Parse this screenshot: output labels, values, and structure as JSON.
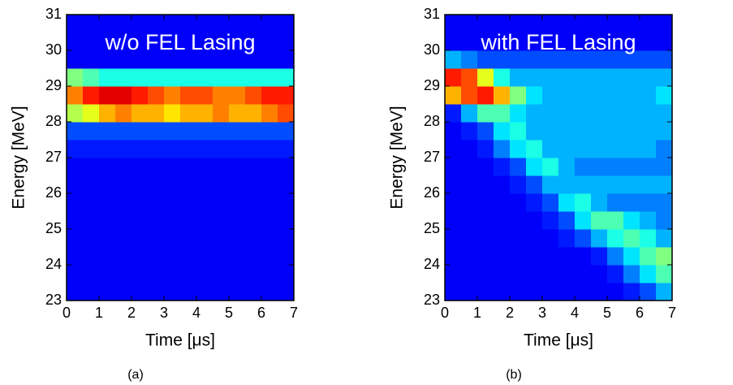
{
  "chart_data": [
    {
      "type": "heatmap",
      "title": "w/o FEL Lasing",
      "caption": "(a)",
      "x_label": "Time [μs]",
      "y_label": "Energy [MeV]",
      "colormap": "jet",
      "xlim": [
        0,
        7
      ],
      "ylim": [
        23,
        31
      ],
      "xticks": [
        0,
        1,
        2,
        3,
        4,
        5,
        6,
        7
      ],
      "yticks": [
        23,
        24,
        25,
        26,
        27,
        28,
        29,
        30,
        31
      ],
      "x_bins": [
        0,
        0.5,
        1,
        1.5,
        2,
        2.5,
        3,
        3.5,
        4,
        4.5,
        5,
        5.5,
        6,
        6.5,
        7
      ],
      "y_bins": [
        23,
        23.5,
        24,
        24.5,
        25,
        25.5,
        26,
        26.5,
        27,
        27.5,
        28,
        28.5,
        29,
        29.5,
        30,
        30.5,
        31
      ],
      "z": [
        [
          0.12,
          0.12,
          0.12,
          0.12,
          0.12,
          0.12,
          0.12,
          0.12,
          0.12,
          0.12,
          0.12,
          0.12,
          0.12,
          0.12
        ],
        [
          0.12,
          0.12,
          0.12,
          0.12,
          0.12,
          0.12,
          0.12,
          0.12,
          0.12,
          0.12,
          0.12,
          0.12,
          0.12,
          0.12
        ],
        [
          0.12,
          0.12,
          0.12,
          0.12,
          0.12,
          0.12,
          0.12,
          0.12,
          0.12,
          0.12,
          0.12,
          0.12,
          0.12,
          0.12
        ],
        [
          0.12,
          0.12,
          0.12,
          0.12,
          0.12,
          0.12,
          0.12,
          0.12,
          0.12,
          0.12,
          0.12,
          0.12,
          0.12,
          0.12
        ],
        [
          0.12,
          0.12,
          0.12,
          0.12,
          0.12,
          0.12,
          0.12,
          0.12,
          0.12,
          0.12,
          0.12,
          0.12,
          0.12,
          0.12
        ],
        [
          0.12,
          0.12,
          0.12,
          0.12,
          0.12,
          0.12,
          0.12,
          0.12,
          0.12,
          0.12,
          0.12,
          0.12,
          0.12,
          0.12
        ],
        [
          0.12,
          0.12,
          0.12,
          0.12,
          0.12,
          0.12,
          0.12,
          0.12,
          0.12,
          0.12,
          0.12,
          0.12,
          0.12,
          0.12
        ],
        [
          0.12,
          0.12,
          0.12,
          0.12,
          0.12,
          0.12,
          0.12,
          0.12,
          0.12,
          0.12,
          0.12,
          0.12,
          0.12,
          0.12
        ],
        [
          0.15,
          0.15,
          0.15,
          0.15,
          0.15,
          0.15,
          0.15,
          0.15,
          0.15,
          0.15,
          0.15,
          0.15,
          0.15,
          0.15
        ],
        [
          0.2,
          0.2,
          0.2,
          0.2,
          0.2,
          0.2,
          0.2,
          0.2,
          0.2,
          0.2,
          0.2,
          0.2,
          0.2,
          0.2
        ],
        [
          0.55,
          0.6,
          0.7,
          0.75,
          0.7,
          0.7,
          0.65,
          0.7,
          0.7,
          0.75,
          0.7,
          0.7,
          0.75,
          0.8
        ],
        [
          0.75,
          0.85,
          0.9,
          0.9,
          0.85,
          0.8,
          0.75,
          0.8,
          0.8,
          0.75,
          0.75,
          0.8,
          0.85,
          0.85
        ],
        [
          0.5,
          0.45,
          0.4,
          0.4,
          0.4,
          0.4,
          0.4,
          0.4,
          0.4,
          0.4,
          0.4,
          0.4,
          0.4,
          0.4
        ],
        [
          0.12,
          0.12,
          0.12,
          0.12,
          0.12,
          0.12,
          0.12,
          0.12,
          0.12,
          0.12,
          0.12,
          0.12,
          0.12,
          0.12
        ],
        [
          0.12,
          0.12,
          0.12,
          0.12,
          0.12,
          0.12,
          0.12,
          0.12,
          0.12,
          0.12,
          0.12,
          0.12,
          0.12,
          0.12
        ],
        [
          0.12,
          0.12,
          0.12,
          0.12,
          0.12,
          0.12,
          0.12,
          0.12,
          0.12,
          0.12,
          0.12,
          0.12,
          0.12,
          0.12
        ]
      ]
    },
    {
      "type": "heatmap",
      "title": "with FEL Lasing",
      "caption": "(b)",
      "x_label": "Time [μs]",
      "y_label": "Energy [MeV]",
      "colormap": "jet",
      "xlim": [
        0,
        7
      ],
      "ylim": [
        23,
        31
      ],
      "xticks": [
        0,
        1,
        2,
        3,
        4,
        5,
        6,
        7
      ],
      "yticks": [
        23,
        24,
        25,
        26,
        27,
        28,
        29,
        30,
        31
      ],
      "x_bins": [
        0,
        0.5,
        1,
        1.5,
        2,
        2.5,
        3,
        3.5,
        4,
        4.5,
        5,
        5.5,
        6,
        6.5,
        7
      ],
      "y_bins": [
        23,
        23.5,
        24,
        24.5,
        25,
        25.5,
        26,
        26.5,
        27,
        27.5,
        28,
        28.5,
        29,
        29.5,
        30,
        30.5,
        31
      ],
      "z": [
        [
          0.12,
          0.12,
          0.12,
          0.12,
          0.12,
          0.12,
          0.12,
          0.12,
          0.12,
          0.12,
          0.12,
          0.15,
          0.2,
          0.3
        ],
        [
          0.12,
          0.12,
          0.12,
          0.12,
          0.12,
          0.12,
          0.12,
          0.12,
          0.12,
          0.12,
          0.15,
          0.25,
          0.35,
          0.45
        ],
        [
          0.12,
          0.12,
          0.12,
          0.12,
          0.12,
          0.12,
          0.12,
          0.12,
          0.12,
          0.15,
          0.25,
          0.35,
          0.45,
          0.5
        ],
        [
          0.12,
          0.12,
          0.12,
          0.12,
          0.12,
          0.12,
          0.12,
          0.15,
          0.2,
          0.3,
          0.4,
          0.45,
          0.4,
          0.3
        ],
        [
          0.12,
          0.12,
          0.12,
          0.12,
          0.12,
          0.12,
          0.15,
          0.2,
          0.35,
          0.45,
          0.45,
          0.35,
          0.3,
          0.25
        ],
        [
          0.12,
          0.12,
          0.12,
          0.12,
          0.12,
          0.15,
          0.2,
          0.35,
          0.4,
          0.3,
          0.25,
          0.25,
          0.25,
          0.25
        ],
        [
          0.12,
          0.12,
          0.12,
          0.12,
          0.15,
          0.2,
          0.3,
          0.3,
          0.3,
          0.3,
          0.3,
          0.3,
          0.3,
          0.3
        ],
        [
          0.12,
          0.12,
          0.12,
          0.15,
          0.2,
          0.35,
          0.4,
          0.3,
          0.25,
          0.25,
          0.25,
          0.25,
          0.25,
          0.25
        ],
        [
          0.12,
          0.12,
          0.15,
          0.25,
          0.35,
          0.4,
          0.3,
          0.3,
          0.3,
          0.3,
          0.3,
          0.3,
          0.3,
          0.25
        ],
        [
          0.12,
          0.15,
          0.2,
          0.35,
          0.4,
          0.3,
          0.3,
          0.3,
          0.3,
          0.3,
          0.3,
          0.3,
          0.3,
          0.3
        ],
        [
          0.15,
          0.3,
          0.45,
          0.45,
          0.35,
          0.3,
          0.3,
          0.3,
          0.3,
          0.3,
          0.3,
          0.3,
          0.3,
          0.3
        ],
        [
          0.7,
          0.8,
          0.85,
          0.7,
          0.5,
          0.35,
          0.3,
          0.3,
          0.3,
          0.3,
          0.3,
          0.3,
          0.3,
          0.35
        ],
        [
          0.85,
          0.8,
          0.6,
          0.4,
          0.3,
          0.3,
          0.3,
          0.3,
          0.3,
          0.3,
          0.3,
          0.3,
          0.3,
          0.3
        ],
        [
          0.3,
          0.25,
          0.2,
          0.2,
          0.2,
          0.2,
          0.2,
          0.2,
          0.2,
          0.2,
          0.2,
          0.2,
          0.2,
          0.2
        ],
        [
          0.12,
          0.12,
          0.12,
          0.12,
          0.12,
          0.12,
          0.12,
          0.12,
          0.12,
          0.12,
          0.12,
          0.12,
          0.12,
          0.12
        ],
        [
          0.12,
          0.12,
          0.12,
          0.12,
          0.12,
          0.12,
          0.12,
          0.12,
          0.12,
          0.12,
          0.12,
          0.12,
          0.12,
          0.12
        ]
      ]
    }
  ]
}
